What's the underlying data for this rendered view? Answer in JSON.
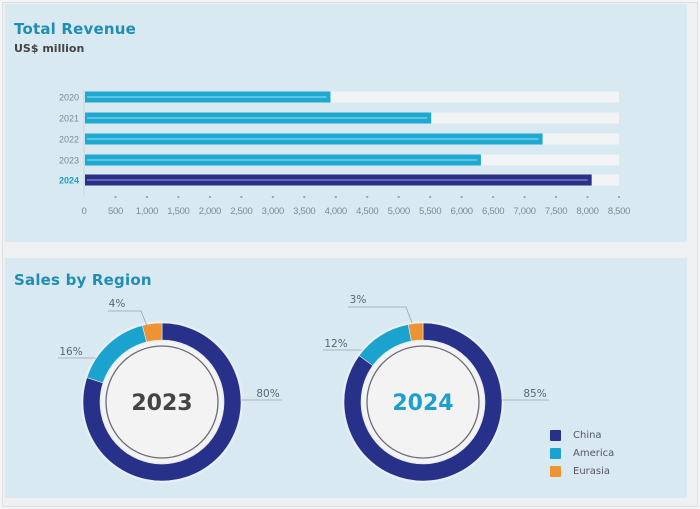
{
  "colors": {
    "bar_past": "#1fa8d0",
    "bar_current": "#2b2f86",
    "track": "#f1f3f4",
    "china": "#27318a",
    "america": "#1ba3cf",
    "eurasia": "#ee9333",
    "title": "#1f8db4",
    "highlight_label": "#1fa0cc"
  },
  "chart_data": [
    {
      "type": "bar",
      "orientation": "horizontal",
      "title": "Total Revenue",
      "subtitle": "US$ million",
      "categories": [
        "2020",
        "2021",
        "2022",
        "2023",
        "2024"
      ],
      "values": [
        3900,
        5500,
        7270,
        6290,
        8050
      ],
      "highlight": "2024",
      "xlim": [
        0,
        8500
      ],
      "xticks": [
        0,
        500,
        1000,
        1500,
        2000,
        2500,
        3000,
        3500,
        4000,
        4500,
        5000,
        5500,
        6000,
        6500,
        7000,
        7500,
        8000,
        8500
      ],
      "xtick_labels": [
        "0",
        "500",
        "1,000",
        "1,500",
        "2,000",
        "2,500",
        "3,000",
        "3,500",
        "4,000",
        "4,500",
        "5,000",
        "5,500",
        "6,000",
        "6,500",
        "7,000",
        "7,500",
        "8,000",
        "8,500"
      ],
      "grid": false
    },
    {
      "type": "pie",
      "title": "Sales by Region",
      "legend": [
        "China",
        "America",
        "Eurasia"
      ],
      "legend_position": "bottom-right",
      "charts": [
        {
          "center_label": "2023",
          "slices": [
            {
              "name": "China",
              "value": 80,
              "label": "80%"
            },
            {
              "name": "America",
              "value": 16,
              "label": "16%"
            },
            {
              "name": "Eurasia",
              "value": 4,
              "label": "4%"
            }
          ]
        },
        {
          "center_label": "2024",
          "slices": [
            {
              "name": "China",
              "value": 85,
              "label": "85%"
            },
            {
              "name": "America",
              "value": 12,
              "label": "12%"
            },
            {
              "name": "Eurasia",
              "value": 3,
              "label": "3%"
            }
          ]
        }
      ]
    }
  ]
}
